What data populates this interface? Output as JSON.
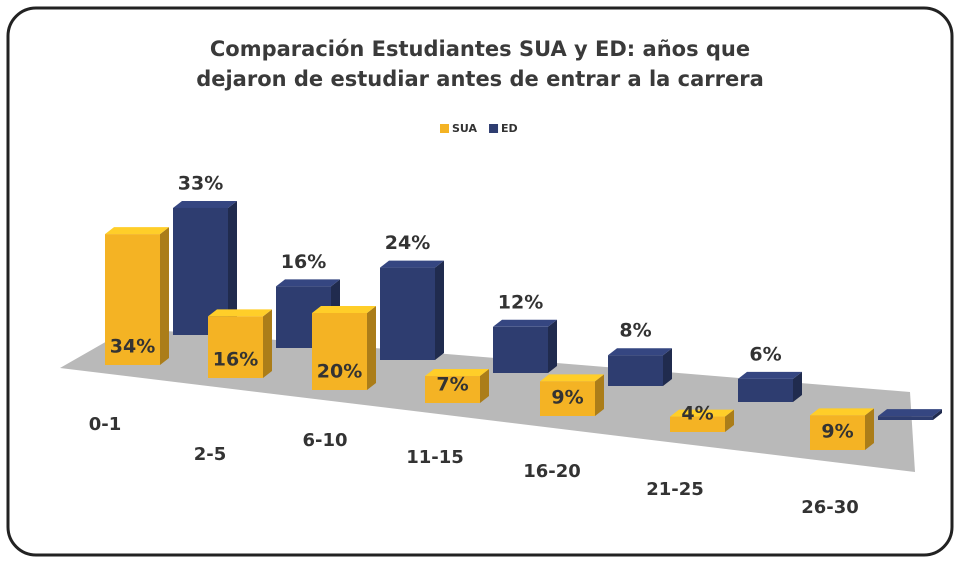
{
  "chart_data": {
    "type": "bar3d",
    "title": "Comparación Estudiantes SUA y ED: años que dejaron de estudiar antes de entrar a la carrera",
    "categories": [
      "0-1",
      "2-5",
      "6-10",
      "11-15",
      "16-20",
      "21-25",
      "26-30"
    ],
    "series": [
      {
        "name": "SUA",
        "color": "#f4b324",
        "values": [
          34,
          16,
          20,
          7,
          9,
          4,
          9
        ],
        "value_labels": [
          "34%",
          "16%",
          "20%",
          "7%",
          "9%",
          "4%",
          "9%"
        ]
      },
      {
        "name": "ED",
        "color": "#2e3d70",
        "values": [
          33,
          16,
          24,
          12,
          8,
          6,
          1
        ],
        "value_labels": [
          "33%",
          "16%",
          "24%",
          "12%",
          "8%",
          "6%",
          null
        ]
      }
    ],
    "legend": "top"
  }
}
